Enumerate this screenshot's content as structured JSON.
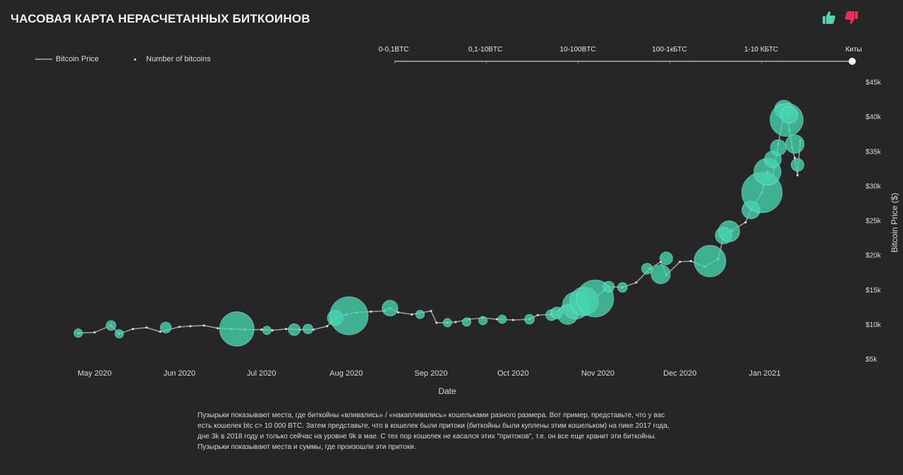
{
  "header": {
    "title": "ЧАСОВАЯ КАРТА НЕРАСЧЕТАННЫХ БИТКОИНОВ",
    "like_icon": "thumbs-up-icon",
    "dislike_icon": "thumbs-down-icon",
    "like_color": "#52d3b2",
    "dislike_color": "#e9305f"
  },
  "legend": {
    "price_label": "Bitcoin Price",
    "bubbles_label": "Number of bitcoins"
  },
  "wallet_filter": {
    "labels": [
      "0-0,1BTC",
      "0,1-10BTC",
      "10-100BTC",
      "100-1кБТС",
      "1-10 КБТС",
      "Киты"
    ],
    "selected": "Киты"
  },
  "chart_data": {
    "type": "scatter",
    "xlabel": "Date",
    "ylabel": "Bitcoin Price ($)",
    "x_ticks": [
      "May 2020",
      "Jun 2020",
      "Jul 2020",
      "Aug 2020",
      "Sep 2020",
      "Oct 2020",
      "Nov 2020",
      "Dec 2020",
      "Jan 2021"
    ],
    "y_ticks": [
      "$5k",
      "$10k",
      "$15k",
      "$20k",
      "$25k",
      "$30k",
      "$35k",
      "$40k",
      "$45k"
    ],
    "xlim": [
      "2020-04-24",
      "2021-01-17"
    ],
    "ylim": [
      5000,
      45000
    ],
    "bubble_color": "#46d6b0",
    "line_color": "#9a9a9a",
    "price_series": [
      [
        "2020-04-25",
        8700
      ],
      [
        "2020-05-01",
        8800
      ],
      [
        "2020-05-07",
        9800
      ],
      [
        "2020-05-10",
        8600
      ],
      [
        "2020-05-15",
        9300
      ],
      [
        "2020-05-20",
        9500
      ],
      [
        "2020-05-25",
        8900
      ],
      [
        "2020-06-01",
        9600
      ],
      [
        "2020-06-05",
        9700
      ],
      [
        "2020-06-10",
        9800
      ],
      [
        "2020-06-15",
        9400
      ],
      [
        "2020-06-20",
        9300
      ],
      [
        "2020-06-25",
        9200
      ],
      [
        "2020-07-01",
        9200
      ],
      [
        "2020-07-05",
        9100
      ],
      [
        "2020-07-10",
        9300
      ],
      [
        "2020-07-15",
        9200
      ],
      [
        "2020-07-20",
        9200
      ],
      [
        "2020-07-25",
        9700
      ],
      [
        "2020-07-28",
        10900
      ],
      [
        "2020-08-01",
        11400
      ],
      [
        "2020-08-05",
        11700
      ],
      [
        "2020-08-10",
        11800
      ],
      [
        "2020-08-15",
        11900
      ],
      [
        "2020-08-17",
        12300
      ],
      [
        "2020-08-20",
        11700
      ],
      [
        "2020-08-25",
        11400
      ],
      [
        "2020-09-01",
        11900
      ],
      [
        "2020-09-03",
        10200
      ],
      [
        "2020-09-07",
        10200
      ],
      [
        "2020-09-10",
        10300
      ],
      [
        "2020-09-15",
        10700
      ],
      [
        "2020-09-20",
        10900
      ],
      [
        "2020-09-25",
        10700
      ],
      [
        "2020-10-01",
        10600
      ],
      [
        "2020-10-07",
        10700
      ],
      [
        "2020-10-10",
        11300
      ],
      [
        "2020-10-15",
        11400
      ],
      [
        "2020-10-21",
        12800
      ],
      [
        "2020-10-25",
        13100
      ],
      [
        "2020-10-31",
        13800
      ],
      [
        "2020-11-05",
        15400
      ],
      [
        "2020-11-10",
        15300
      ],
      [
        "2020-11-15",
        16000
      ],
      [
        "2020-11-20",
        18000
      ],
      [
        "2020-11-24",
        19000
      ],
      [
        "2020-11-26",
        17100
      ],
      [
        "2020-12-01",
        19000
      ],
      [
        "2020-12-05",
        19100
      ],
      [
        "2020-12-10",
        18300
      ],
      [
        "2020-12-15",
        19400
      ],
      [
        "2020-12-17",
        22800
      ],
      [
        "2020-12-20",
        23500
      ],
      [
        "2020-12-25",
        24700
      ],
      [
        "2020-12-27",
        26500
      ],
      [
        "2020-12-31",
        29000
      ],
      [
        "2021-01-02",
        32000
      ],
      [
        "2021-01-04",
        31500
      ],
      [
        "2021-01-06",
        36000
      ],
      [
        "2021-01-08",
        40500
      ],
      [
        "2021-01-09",
        40500
      ],
      [
        "2021-01-10",
        38000
      ],
      [
        "2021-01-11",
        35500
      ],
      [
        "2021-01-12",
        34000
      ],
      [
        "2021-01-13",
        31500
      ],
      [
        "2021-01-14",
        36500
      ]
    ],
    "bubbles": [
      [
        "2020-04-25",
        8700,
        2
      ],
      [
        "2020-05-07",
        9800,
        3
      ],
      [
        "2020-05-10",
        8600,
        2
      ],
      [
        "2020-05-27",
        9500,
        4
      ],
      [
        "2020-06-22",
        9300,
        60
      ],
      [
        "2020-07-03",
        9100,
        2
      ],
      [
        "2020-07-13",
        9200,
        5
      ],
      [
        "2020-07-18",
        9300,
        3
      ],
      [
        "2020-07-28",
        10900,
        10
      ],
      [
        "2020-08-02",
        11200,
        75
      ],
      [
        "2020-08-17",
        12300,
        10
      ],
      [
        "2020-08-28",
        11400,
        2
      ],
      [
        "2020-09-07",
        10200,
        2
      ],
      [
        "2020-09-14",
        10300,
        2
      ],
      [
        "2020-09-20",
        10500,
        2
      ],
      [
        "2020-09-27",
        10700,
        2
      ],
      [
        "2020-10-07",
        10700,
        3
      ],
      [
        "2020-10-15",
        11300,
        4
      ],
      [
        "2020-10-17",
        11600,
        5
      ],
      [
        "2020-10-21",
        11400,
        18
      ],
      [
        "2020-10-24",
        12700,
        35
      ],
      [
        "2020-10-27",
        13300,
        40
      ],
      [
        "2020-10-31",
        13700,
        70
      ],
      [
        "2020-11-05",
        15400,
        4
      ],
      [
        "2020-11-10",
        15300,
        3
      ],
      [
        "2020-11-19",
        18000,
        4
      ],
      [
        "2020-11-24",
        17200,
        16
      ],
      [
        "2020-11-26",
        19500,
        6
      ],
      [
        "2020-12-12",
        19100,
        50
      ],
      [
        "2020-12-17",
        22800,
        12
      ],
      [
        "2020-12-19",
        23400,
        20
      ],
      [
        "2020-12-27",
        26500,
        14
      ],
      [
        "2020-12-31",
        29000,
        85
      ],
      [
        "2021-01-02",
        32000,
        35
      ],
      [
        "2021-01-04",
        33800,
        12
      ],
      [
        "2021-01-06",
        35500,
        10
      ],
      [
        "2021-01-08",
        41000,
        15
      ],
      [
        "2021-01-09",
        39500,
        55
      ],
      [
        "2021-01-10",
        40200,
        12
      ],
      [
        "2021-01-12",
        36000,
        15
      ],
      [
        "2021-01-13",
        33000,
        6
      ]
    ]
  },
  "description": {
    "lines": [
      "Пузырьки показывают места, где биткойны «вливались» / «накапливались» кошельками разного размера. Вот пример, представьте, что у вас",
      "есть кошелек btc с> 10 000 BTC. Затем представьте, что в кошелек были притоки (биткойны были куплены этим кошельком) на пике 2017 года,",
      "дне 3k в 2018 году и только сейчас на уровне 9k в мае. С тех пор кошелек не касался этих \"притоков\", т.е. он все еще хранит эти биткойны.",
      "Пузырьки показывают места и суммы, где произошли эти притоки."
    ]
  }
}
